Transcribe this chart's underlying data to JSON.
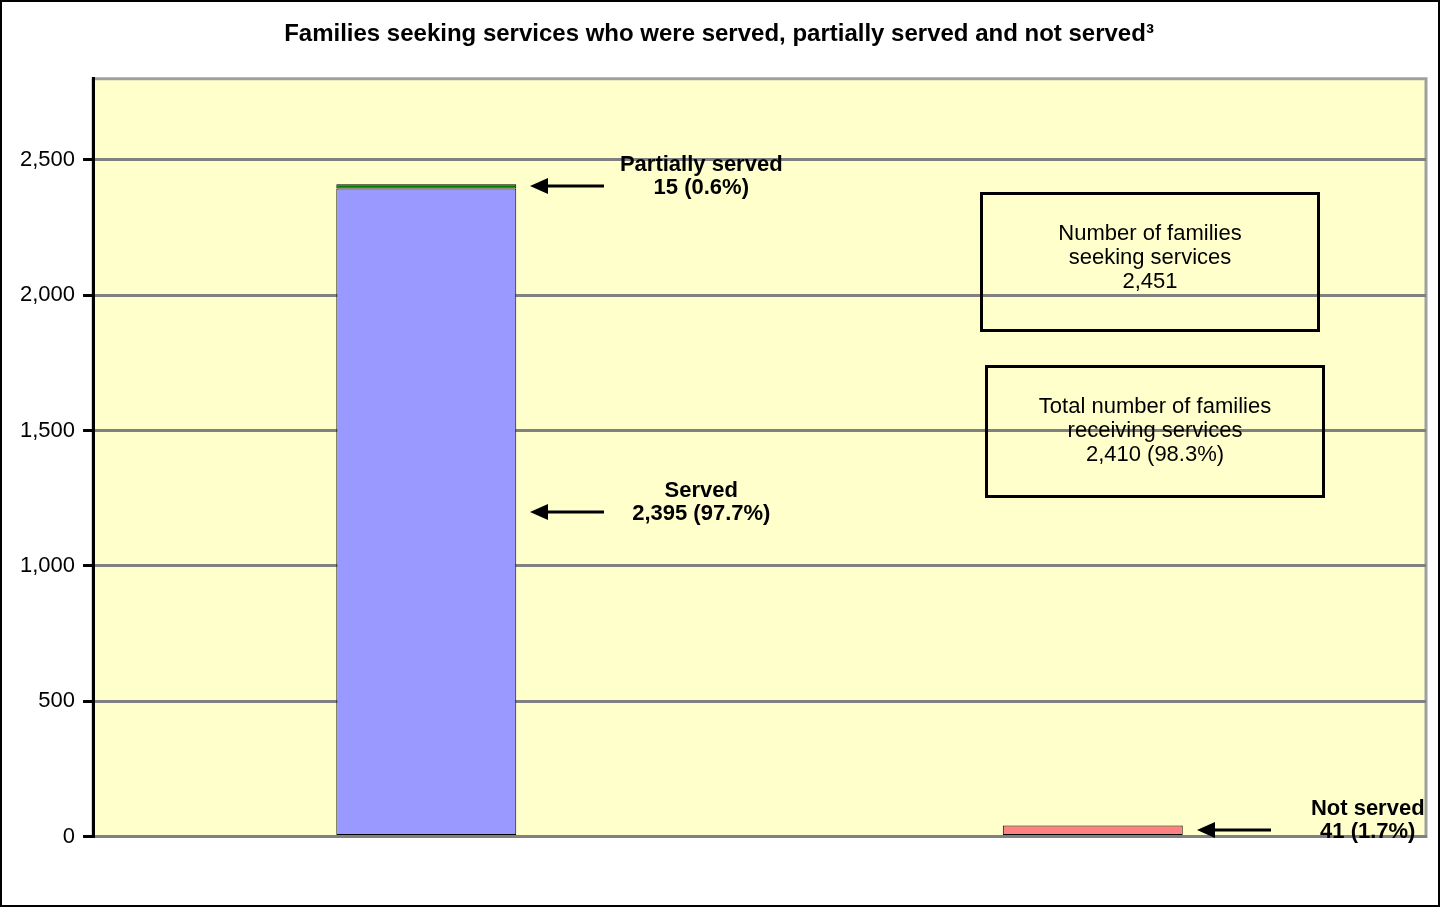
{
  "chart_data": {
    "type": "bar",
    "title": "Families seeking services who were served, partially served and not served³",
    "categories": [
      null,
      null
    ],
    "stacked": true,
    "series": [
      {
        "name": "Served",
        "color": "#9999ff",
        "values": [
          2395,
          null
        ]
      },
      {
        "name": "Partially served",
        "color": "#008000",
        "values": [
          15,
          null
        ]
      },
      {
        "name": "Not served",
        "color": "#ff8080",
        "values": [
          null,
          41
        ]
      }
    ],
    "ylim": [
      0,
      2800
    ],
    "yticks": [
      {
        "value": 0,
        "label": "0"
      },
      {
        "value": 500,
        "label": "500"
      },
      {
        "value": 1000,
        "label": "1,000"
      },
      {
        "value": 1500,
        "label": "1,500"
      },
      {
        "value": 2000,
        "label": "2,000"
      },
      {
        "value": 2500,
        "label": "2,500"
      }
    ],
    "grid": "y",
    "legend": false,
    "annotations": [
      "2,395 (97.7%)",
      "15 (0.6%)",
      "41 (1.7%)",
      "Number of families\nseeking services\n2,451",
      "Total number of families\nreceiving services\n2,410 (98.3%)"
    ]
  }
}
